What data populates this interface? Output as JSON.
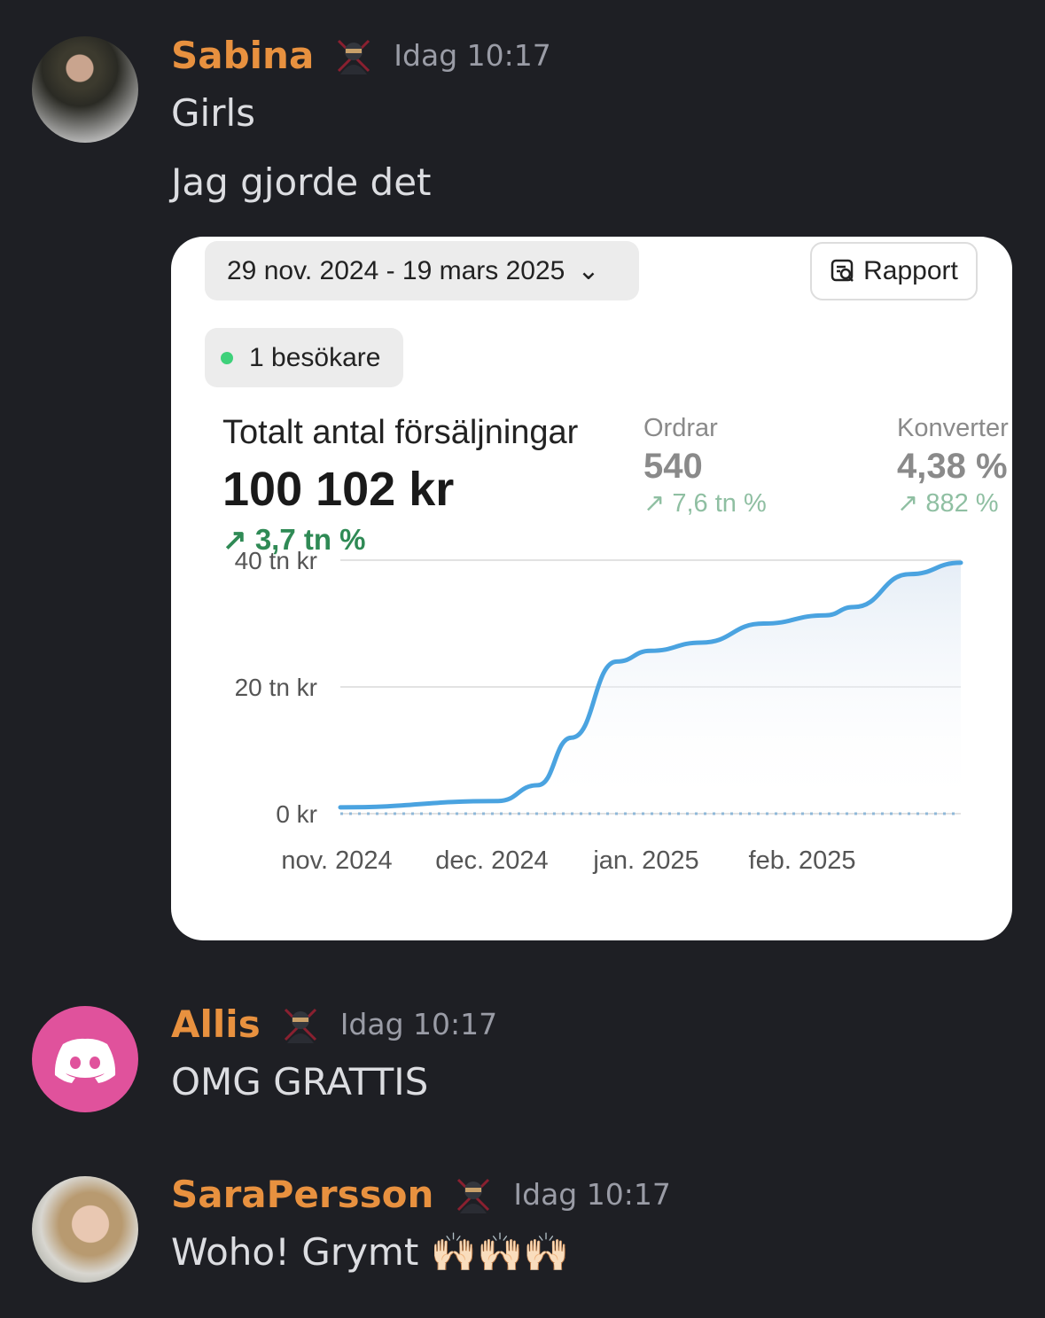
{
  "messages": [
    {
      "author": "Sabina",
      "time": "Idag 10:17",
      "lines": [
        "Girls",
        "Jag gjorde det"
      ]
    },
    {
      "author": "Allis",
      "time": "Idag 10:17",
      "lines": [
        "OMG GRATTIS"
      ]
    },
    {
      "author": "SaraPersson",
      "time": "Idag 10:17",
      "lines": [
        "Woho! Grymt 🙌🏻🙌🏻🙌🏻"
      ]
    }
  ],
  "colors": {
    "author": "#e8913f",
    "background": "#1e1f24",
    "discord_avatar": "#e0529c",
    "line": "#4aa3e0"
  },
  "card": {
    "date_range": "29 nov. 2024 - 19 mars 2025",
    "report_label": "Rapport",
    "visitors": "1 besökare",
    "total_label": "Totalt antal försäljningar",
    "total_value": "100 102 kr",
    "total_change": "3,7 tn %",
    "orders_label": "Ordrar",
    "orders_value": "540",
    "orders_change": "7,6 tn %",
    "conv_label": "Konverter",
    "conv_value": "4,38 %",
    "conv_change": "882 %"
  },
  "chart_data": {
    "type": "area",
    "ylim": [
      0,
      40
    ],
    "yticks": [
      "0 kr",
      "20 tn kr",
      "40 tn kr"
    ],
    "xticks": [
      "nov. 2024",
      "dec. 2024",
      "jan. 2025",
      "feb. 2025"
    ],
    "grid": true,
    "series": [
      {
        "x": [
          "2024-11-29",
          "2024-12-27",
          "2025-01-03",
          "2025-01-09",
          "2025-01-17",
          "2025-01-23",
          "2025-02-01",
          "2025-02-12",
          "2025-02-23",
          "2025-02-28",
          "2025-03-10",
          "2025-03-19"
        ],
        "y": [
          1,
          2,
          4.5,
          12,
          24,
          25.7,
          27,
          30,
          31.3,
          32.6,
          37.8,
          39.6
        ],
        "style": "solid"
      },
      {
        "x": [
          "2024-11-29",
          "2025-03-19"
        ],
        "y": [
          0,
          0
        ],
        "style": "dotted"
      }
    ]
  }
}
